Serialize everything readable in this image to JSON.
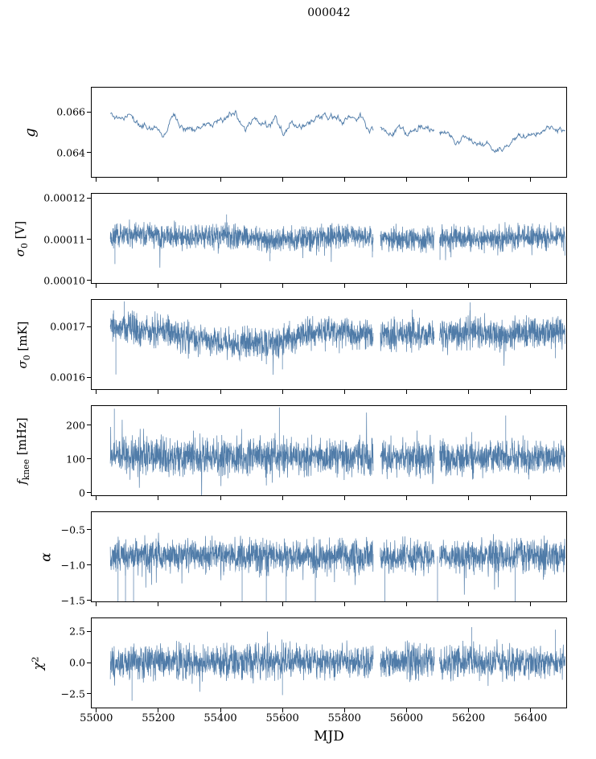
{
  "title": "000042",
  "chart_data": {
    "type": "line",
    "title": "000042",
    "xlabel": "MJD",
    "x_axis": "Modified Julian Date",
    "xlim": [
      54985,
      56515
    ],
    "data_start": 55045,
    "data_end": 56512,
    "line_color": "#4f7ba8",
    "background": "#ffffff",
    "grid": false,
    "legend": false,
    "gaps": [
      [
        55893,
        55915
      ],
      [
        56090,
        56106
      ]
    ],
    "xticks": [
      {
        "value": 55000,
        "label": "55000"
      },
      {
        "value": 55200,
        "label": "55200"
      },
      {
        "value": 55400,
        "label": "55400"
      },
      {
        "value": 55600,
        "label": "55600"
      },
      {
        "value": 55800,
        "label": "55800"
      },
      {
        "value": 56000,
        "label": "56000"
      },
      {
        "value": 56200,
        "label": "56200"
      },
      {
        "value": 56400,
        "label": "56400"
      }
    ],
    "panels": [
      {
        "name": "g",
        "label": {
          "main": "g",
          "sub": "",
          "sup": "",
          "suffix": ""
        },
        "label_text": "g",
        "ylim": [
          0.0628,
          0.0672
        ],
        "yticks": [
          {
            "value": 0.066,
            "label": "0.066"
          },
          {
            "value": 0.064,
            "label": "0.064"
          }
        ],
        "type": "line",
        "seed": 11,
        "dt": 2.0,
        "sigma": 8e-05,
        "walk": 0.00022,
        "summary": "Gain g: smooth wiggly trace, mean 0.0653, range 0.0640-0.0662, low after MJD 56150 then recovers",
        "anchors": [
          [
            55045,
            0.0659
          ],
          [
            55070,
            0.0656
          ],
          [
            55100,
            0.0658
          ],
          [
            55140,
            0.0654
          ],
          [
            55180,
            0.0653
          ],
          [
            55220,
            0.065
          ],
          [
            55248,
            0.0661
          ],
          [
            55270,
            0.0656
          ],
          [
            55310,
            0.0654
          ],
          [
            55360,
            0.0656
          ],
          [
            55420,
            0.0656
          ],
          [
            55450,
            0.066
          ],
          [
            55480,
            0.065
          ],
          [
            55510,
            0.0655
          ],
          [
            55550,
            0.0653
          ],
          [
            55580,
            0.0657
          ],
          [
            55605,
            0.0648
          ],
          [
            55625,
            0.0654
          ],
          [
            55660,
            0.0653
          ],
          [
            55700,
            0.0656
          ],
          [
            55760,
            0.0657
          ],
          [
            55810,
            0.0656
          ],
          [
            55850,
            0.0658
          ],
          [
            55880,
            0.065
          ],
          [
            55910,
            0.0653
          ],
          [
            55940,
            0.0649
          ],
          [
            55970,
            0.0652
          ],
          [
            56000,
            0.0647
          ],
          [
            56040,
            0.0653
          ],
          [
            56080,
            0.0652
          ],
          [
            56120,
            0.065
          ],
          [
            56160,
            0.0645
          ],
          [
            56200,
            0.0647
          ],
          [
            56240,
            0.0643
          ],
          [
            56290,
            0.0641
          ],
          [
            56340,
            0.0645
          ],
          [
            56390,
            0.0648
          ],
          [
            56440,
            0.0651
          ],
          [
            56480,
            0.0653
          ],
          [
            56512,
            0.0652
          ]
        ],
        "spikes": [],
        "show_xtick_labels": false
      },
      {
        "name": "sigma0_V",
        "label": {
          "main": "σ",
          "sub": "0",
          "sup": "",
          "suffix": " [V]"
        },
        "label_text": "sigma0 [V]",
        "ylim": [
          9.94e-05,
          0.000121
        ],
        "yticks": [
          {
            "value": 0.00012,
            "label": "0.00012"
          },
          {
            "value": 0.00011,
            "label": "0.00011"
          },
          {
            "value": 0.0001,
            "label": "0.00010"
          }
        ],
        "type": "noise",
        "seed": 22,
        "dt": 0.65,
        "sigma": 1.4e-06,
        "tail_p": 0.05,
        "tail_amp": 5.5e-06,
        "tail_skew": 0.65,
        "summary": "White-noise level in volts: dense band mean 1.105e-4, spread ±3e-6, seasonal undulation, down-spikes to 1.04e-4",
        "anchors": [
          [
            55045,
            0.0001112
          ],
          [
            55100,
            0.0001112
          ],
          [
            55200,
            0.0001108
          ],
          [
            55300,
            0.0001105
          ],
          [
            55380,
            0.0001109
          ],
          [
            55460,
            0.0001108
          ],
          [
            55560,
            0.0001098
          ],
          [
            55650,
            0.0001101
          ],
          [
            55750,
            0.0001107
          ],
          [
            55850,
            0.0001107
          ],
          [
            55950,
            0.0001102
          ],
          [
            56050,
            0.0001102
          ],
          [
            56150,
            0.0001105
          ],
          [
            56250,
            0.0001103
          ],
          [
            56350,
            0.0001103
          ],
          [
            56450,
            0.0001106
          ],
          [
            56512,
            0.0001107
          ]
        ],
        "spikes": [
          [
            55060,
            0.000104
          ],
          [
            55420,
            0.000116
          ],
          [
            55560,
            0.0001047
          ],
          [
            55890,
            0.0001056
          ],
          [
            56108,
            0.000105
          ]
        ],
        "show_xtick_labels": false
      },
      {
        "name": "sigma0_mK",
        "label": {
          "main": "σ",
          "sub": "0",
          "sup": "",
          "suffix": " [mK]"
        },
        "label_text": "sigma0 [mK]",
        "ylim": [
          0.001577,
          0.001753
        ],
        "yticks": [
          {
            "value": 0.0017,
            "label": "0.0017"
          },
          {
            "value": 0.0016,
            "label": "0.0016"
          }
        ],
        "type": "noise",
        "seed": 33,
        "dt": 0.65,
        "sigma": 1.5e-05,
        "tail_p": 0.06,
        "tail_amp": 5e-05,
        "tail_skew": 0.6,
        "summary": "White-noise level in mK: band mean 0.00169, spread ±3.5e-5, dip near MJD 55450-55550, down-spike to 0.00160 at 55063",
        "anchors": [
          [
            55045,
            0.0017
          ],
          [
            55090,
            0.001697
          ],
          [
            55150,
            0.00169
          ],
          [
            55230,
            0.001694
          ],
          [
            55290,
            0.00168
          ],
          [
            55380,
            0.00167
          ],
          [
            55480,
            0.001666
          ],
          [
            55560,
            0.001668
          ],
          [
            55620,
            0.001676
          ],
          [
            55700,
            0.001689
          ],
          [
            55800,
            0.001688
          ],
          [
            55900,
            0.001683
          ],
          [
            56000,
            0.001685
          ],
          [
            56100,
            0.001685
          ],
          [
            56200,
            0.001688
          ],
          [
            56300,
            0.001685
          ],
          [
            56400,
            0.00169
          ],
          [
            56512,
            0.001689
          ]
        ],
        "spikes": [
          [
            55063,
            0.001606
          ],
          [
            55090,
            0.00175
          ],
          [
            55600,
            0.001616
          ],
          [
            56205,
            0.001748
          ],
          [
            56480,
            0.001638
          ]
        ],
        "show_xtick_labels": false
      },
      {
        "name": "f_knee",
        "label": {
          "main": "f",
          "sub": "knee",
          "sup": "",
          "suffix": " [mHz]"
        },
        "label_text": "f_knee [mHz]",
        "ylim": [
          -8,
          256
        ],
        "yticks": [
          {
            "value": 200,
            "label": "200"
          },
          {
            "value": 100,
            "label": "100"
          },
          {
            "value": 0,
            "label": "0"
          }
        ],
        "type": "noise",
        "seed": 44,
        "dt": 0.65,
        "sigma": 26,
        "tail_p": 0.07,
        "tail_amp": 90,
        "tail_skew": 0.45,
        "summary": "Knee frequency: stationary band mean ~107 mHz, spread 40-180 mHz, spikes to ~250 mHz at MJD 55058 and 55590",
        "anchors": [
          [
            55045,
            108
          ],
          [
            55900,
            104
          ],
          [
            56512,
            106
          ]
        ],
        "spikes": [
          [
            55058,
            248
          ],
          [
            55590,
            252
          ],
          [
            56320,
            228
          ]
        ],
        "show_xtick_labels": false
      },
      {
        "name": "alpha",
        "label": {
          "main": "α",
          "sub": "",
          "sup": "",
          "suffix": ""
        },
        "label_text": "alpha",
        "ylim": [
          -1.515,
          -0.255
        ],
        "yticks": [
          {
            "value": -0.5,
            "label": "−0.5"
          },
          {
            "value": -1.0,
            "label": "−1.0"
          },
          {
            "value": -1.5,
            "label": "−1.5"
          }
        ],
        "type": "noise",
        "seed": 55,
        "dt": 0.65,
        "sigma": 0.11,
        "tail_p": 0.05,
        "tail_amp": 0.5,
        "tail_skew": 0.65,
        "summary": "Spectral slope: band mean -0.87, spread -1.25 to -0.55, frequent down-spikes clipped below -1.5",
        "anchors": [
          [
            55045,
            -0.86
          ],
          [
            55900,
            -0.88
          ],
          [
            56512,
            -0.87
          ]
        ],
        "spikes": [
          [
            55070,
            -1.62
          ],
          [
            55094,
            -1.95
          ],
          [
            55120,
            -1.72
          ],
          [
            55470,
            -1.55
          ],
          [
            55548,
            -1.85
          ],
          [
            55612,
            -1.6
          ],
          [
            55706,
            -1.65
          ],
          [
            55930,
            -1.75
          ],
          [
            56100,
            -1.9
          ],
          [
            56350,
            -1.55
          ]
        ],
        "show_xtick_labels": false
      },
      {
        "name": "chi2",
        "label": {
          "main": "χ",
          "sub": "",
          "sup": "2",
          "suffix": ""
        },
        "label_text": "chi^2",
        "ylim": [
          -3.6,
          3.56
        ],
        "yticks": [
          {
            "value": 2.5,
            "label": "2.5"
          },
          {
            "value": 0.0,
            "label": "0.0"
          },
          {
            "value": -2.5,
            "label": "−2.5"
          }
        ],
        "type": "noise",
        "seed": 66,
        "dt": 0.65,
        "sigma": 0.62,
        "tail_p": 0.08,
        "tail_amp": 1.6,
        "tail_skew": 0.5,
        "summary": "Reduced chi-square residual: symmetric band mean ~0.05, spread ±1.6, spikes to ±2.8, one down-spike to -3.05 at MJD 55115",
        "anchors": [
          [
            55045,
            0.07
          ],
          [
            56512,
            0.07
          ]
        ],
        "spikes": [
          [
            55115,
            -3.05
          ],
          [
            55600,
            -2.6
          ],
          [
            56210,
            2.85
          ],
          [
            56480,
            2.65
          ]
        ],
        "show_xtick_labels": true
      }
    ]
  }
}
